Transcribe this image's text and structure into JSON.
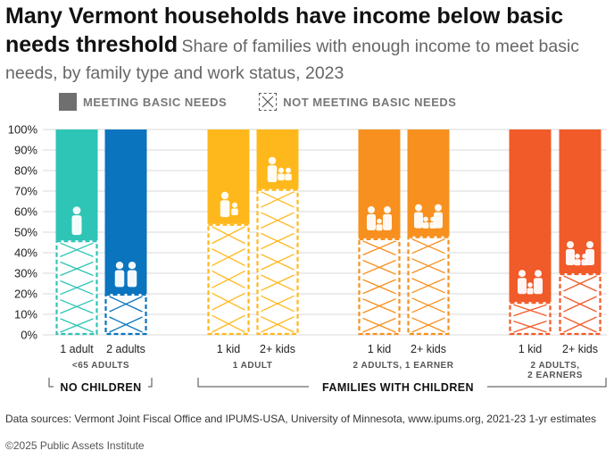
{
  "header": {
    "title": "Many Vermont households have income below basic needs threshold",
    "subtitle": "Share of families with enough income to meet basic needs, by family type and work status, 2023"
  },
  "legend": {
    "meeting": "MEETING BASIC NEEDS",
    "not_meeting": "NOT MEETING BASIC NEEDS"
  },
  "footer": {
    "source": "Data sources: Vermont Joint Fiscal Office and IPUMS-USA, University of Minnesota, www.ipums.org, 2021-23 1-yr estimates",
    "copyright": "©2025 Public Assets Institute"
  },
  "chart_data": {
    "type": "bar",
    "stacked": true,
    "ylim": [
      0,
      100
    ],
    "yticks": [
      "0%",
      "10%",
      "20%",
      "30%",
      "40%",
      "50%",
      "60%",
      "70%",
      "80%",
      "90%",
      "100%"
    ],
    "categories": [
      "1 adult",
      "2 adults",
      "1 kid",
      "2+ kids",
      "1 kid",
      "2+ kids",
      "1 kid",
      "2+ kids"
    ],
    "series": [
      {
        "name": "MEETING BASIC NEEDS",
        "values": [
          54,
          80,
          46,
          29,
          53,
          52,
          84,
          70
        ]
      },
      {
        "name": "NOT MEETING BASIC NEEDS",
        "values": [
          46,
          20,
          54,
          71,
          47,
          48,
          16,
          30
        ]
      }
    ],
    "bar_colors": [
      "#2ec4b6",
      "#0a74bf",
      "#ffb81c",
      "#ffb81c",
      "#f7901e",
      "#f7901e",
      "#f15a29",
      "#f15a29"
    ],
    "group_labels": [
      "<65 ADULTS",
      "1 ADULT",
      "2 ADULTS, 1 EARNER",
      "2 ADULTS, 2 EARNERS"
    ],
    "super_groups": [
      "NO CHILDREN",
      "FAMILIES WITH CHILDREN"
    ],
    "grid": true,
    "legend_position": "top-left"
  }
}
